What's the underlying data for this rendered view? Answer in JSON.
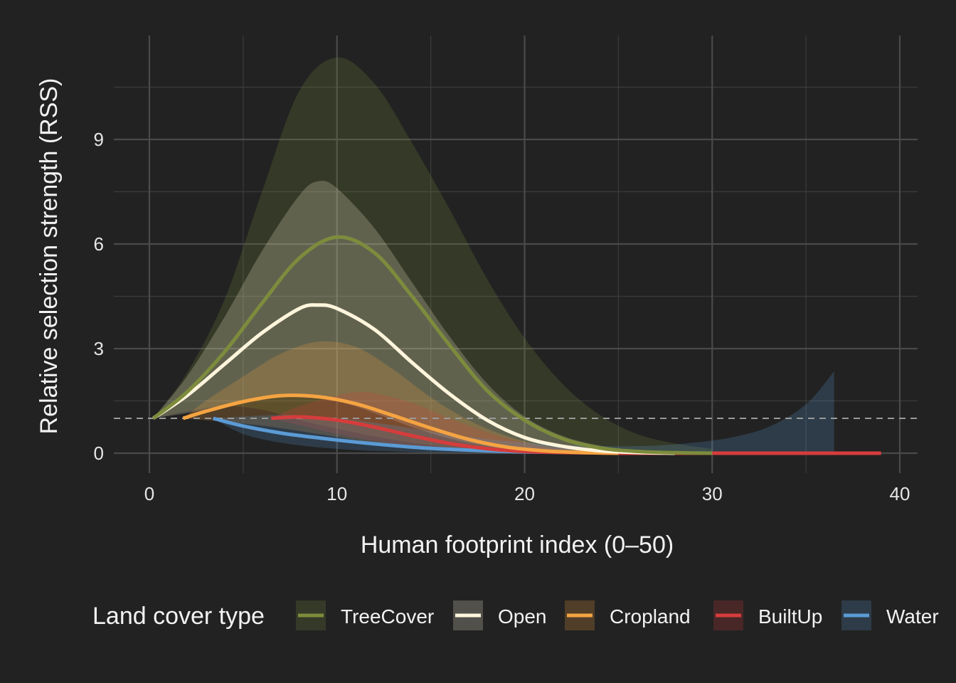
{
  "chart_data": {
    "type": "line",
    "xlabel": "Human footprint index (0–50)",
    "ylabel": "Relative selection strength (RSS)",
    "xlim": [
      -2,
      41
    ],
    "ylim": [
      -0.55,
      11.8
    ],
    "x_ticks": [
      0,
      10,
      20,
      30,
      40
    ],
    "y_ticks": [
      0,
      3,
      6,
      9
    ],
    "grid": true,
    "reference_line": {
      "y": 1,
      "style": "dashed"
    },
    "legend": {
      "title": "Land cover type",
      "position": "bottom"
    },
    "series": [
      {
        "name": "TreeCover",
        "color": "#7d8c3c",
        "points": [
          [
            0.2,
            1.0
          ],
          [
            2,
            1.75
          ],
          [
            4,
            2.9
          ],
          [
            6,
            4.3
          ],
          [
            8,
            5.6
          ],
          [
            10,
            6.2
          ],
          [
            12,
            5.75
          ],
          [
            14,
            4.5
          ],
          [
            16,
            3.1
          ],
          [
            18,
            1.8
          ],
          [
            20,
            0.95
          ],
          [
            22,
            0.42
          ],
          [
            24,
            0.15
          ],
          [
            26,
            0.05
          ],
          [
            28,
            0.015
          ],
          [
            30,
            0.0
          ]
        ],
        "lower": [
          [
            0.2,
            1.0
          ],
          [
            2,
            1.2
          ],
          [
            4,
            1.35
          ],
          [
            6,
            1.25
          ],
          [
            8,
            0.95
          ],
          [
            10,
            0.7
          ],
          [
            12,
            0.48
          ],
          [
            14,
            0.3
          ],
          [
            16,
            0.17
          ],
          [
            18,
            0.09
          ],
          [
            20,
            0.04
          ],
          [
            24,
            0.01
          ],
          [
            30,
            0.0
          ]
        ],
        "upper": [
          [
            0.2,
            1.0
          ],
          [
            2,
            2.3
          ],
          [
            4,
            4.4
          ],
          [
            6,
            7.5
          ],
          [
            8,
            10.4
          ],
          [
            10,
            11.35
          ],
          [
            12,
            10.6
          ],
          [
            14,
            8.9
          ],
          [
            16,
            7.0
          ],
          [
            18,
            5.0
          ],
          [
            20,
            3.3
          ],
          [
            22,
            2.0
          ],
          [
            24,
            1.1
          ],
          [
            26,
            0.55
          ],
          [
            28,
            0.28
          ],
          [
            30,
            0.12
          ]
        ]
      },
      {
        "name": "Open",
        "color": "#fff5dc",
        "points": [
          [
            0.2,
            1.0
          ],
          [
            2,
            1.65
          ],
          [
            4,
            2.55
          ],
          [
            6,
            3.45
          ],
          [
            8,
            4.15
          ],
          [
            9,
            4.25
          ],
          [
            10,
            4.15
          ],
          [
            12,
            3.55
          ],
          [
            14,
            2.6
          ],
          [
            16,
            1.7
          ],
          [
            18,
            0.95
          ],
          [
            20,
            0.45
          ],
          [
            22,
            0.2
          ],
          [
            24,
            0.07
          ],
          [
            26,
            0.02
          ],
          [
            28,
            0.0
          ]
        ],
        "lower": [
          [
            0.2,
            1.0
          ],
          [
            2,
            1.15
          ],
          [
            4,
            1.35
          ],
          [
            6,
            1.55
          ],
          [
            8,
            1.65
          ],
          [
            10,
            1.5
          ],
          [
            12,
            1.15
          ],
          [
            14,
            0.75
          ],
          [
            16,
            0.42
          ],
          [
            18,
            0.2
          ],
          [
            20,
            0.08
          ],
          [
            24,
            0.01
          ],
          [
            28,
            0.0
          ]
        ],
        "upper": [
          [
            0.2,
            1.0
          ],
          [
            2,
            2.2
          ],
          [
            4,
            3.9
          ],
          [
            6,
            5.8
          ],
          [
            8,
            7.4
          ],
          [
            9,
            7.8
          ],
          [
            10,
            7.6
          ],
          [
            12,
            6.45
          ],
          [
            14,
            4.9
          ],
          [
            16,
            3.35
          ],
          [
            18,
            2.0
          ],
          [
            20,
            1.05
          ],
          [
            22,
            0.5
          ],
          [
            24,
            0.22
          ],
          [
            26,
            0.08
          ],
          [
            28,
            0.02
          ]
        ]
      },
      {
        "name": "Cropland",
        "color": "#f5a442",
        "points": [
          [
            1.8,
            1.0
          ],
          [
            3,
            1.2
          ],
          [
            5,
            1.48
          ],
          [
            7,
            1.65
          ],
          [
            9,
            1.62
          ],
          [
            11,
            1.42
          ],
          [
            13,
            1.08
          ],
          [
            15,
            0.72
          ],
          [
            17,
            0.4
          ],
          [
            19,
            0.18
          ],
          [
            21,
            0.07
          ],
          [
            23,
            0.02
          ],
          [
            25,
            0.0
          ]
        ],
        "lower": [
          [
            1.8,
            1.0
          ],
          [
            3,
            0.95
          ],
          [
            5,
            0.85
          ],
          [
            7,
            0.72
          ],
          [
            9,
            0.55
          ],
          [
            11,
            0.38
          ],
          [
            13,
            0.23
          ],
          [
            15,
            0.12
          ],
          [
            17,
            0.05
          ],
          [
            20,
            0.01
          ],
          [
            25,
            0.0
          ]
        ],
        "upper": [
          [
            1.8,
            1.0
          ],
          [
            3,
            1.5
          ],
          [
            5,
            2.2
          ],
          [
            7,
            2.85
          ],
          [
            9,
            3.2
          ],
          [
            11,
            3.05
          ],
          [
            13,
            2.4
          ],
          [
            15,
            1.6
          ],
          [
            17,
            0.95
          ],
          [
            19,
            0.5
          ],
          [
            21,
            0.22
          ],
          [
            23,
            0.09
          ],
          [
            25,
            0.03
          ]
        ]
      },
      {
        "name": "BuiltUp",
        "color": "#d63c3c",
        "points": [
          [
            6.5,
            1.0
          ],
          [
            8,
            1.04
          ],
          [
            10,
            0.95
          ],
          [
            12,
            0.75
          ],
          [
            14,
            0.5
          ],
          [
            16,
            0.28
          ],
          [
            18,
            0.13
          ],
          [
            20,
            0.05
          ],
          [
            22,
            0.02
          ],
          [
            25,
            0.0
          ],
          [
            30,
            0.0
          ],
          [
            35,
            0.0
          ],
          [
            39,
            0.0
          ]
        ],
        "lower": [
          [
            6.5,
            1.0
          ],
          [
            8,
            0.8
          ],
          [
            10,
            0.55
          ],
          [
            12,
            0.35
          ],
          [
            14,
            0.2
          ],
          [
            16,
            0.1
          ],
          [
            18,
            0.04
          ],
          [
            21,
            0.01
          ],
          [
            25,
            0.0
          ],
          [
            39,
            0.0
          ]
        ],
        "upper": [
          [
            6.5,
            1.0
          ],
          [
            8,
            1.35
          ],
          [
            10,
            1.65
          ],
          [
            11,
            1.75
          ],
          [
            12,
            1.72
          ],
          [
            14,
            1.45
          ],
          [
            16,
            1.0
          ],
          [
            18,
            0.6
          ],
          [
            20,
            0.3
          ],
          [
            22,
            0.13
          ],
          [
            25,
            0.04
          ],
          [
            30,
            0.01
          ],
          [
            39,
            0.0
          ]
        ]
      },
      {
        "name": "Water",
        "color": "#5b9bd5",
        "points": [
          [
            3.4,
            1.0
          ],
          [
            5,
            0.78
          ],
          [
            7,
            0.58
          ],
          [
            9,
            0.44
          ],
          [
            11,
            0.32
          ],
          [
            13,
            0.22
          ],
          [
            15,
            0.14
          ],
          [
            17,
            0.09
          ],
          [
            19,
            0.05
          ],
          [
            21,
            0.03
          ],
          [
            24,
            0.01
          ],
          [
            28,
            0.0
          ],
          [
            36.5,
            0.0
          ]
        ],
        "lower": [
          [
            3.4,
            1.0
          ],
          [
            5,
            0.55
          ],
          [
            7,
            0.3
          ],
          [
            9,
            0.17
          ],
          [
            11,
            0.09
          ],
          [
            13,
            0.05
          ],
          [
            15,
            0.02
          ],
          [
            18,
            0.01
          ],
          [
            22,
            0.0
          ],
          [
            36.5,
            0.0
          ]
        ],
        "upper": [
          [
            3.4,
            1.0
          ],
          [
            5,
            1.05
          ],
          [
            7,
            1.1
          ],
          [
            9,
            1.06
          ],
          [
            11,
            0.95
          ],
          [
            13,
            0.8
          ],
          [
            15,
            0.62
          ],
          [
            17,
            0.47
          ],
          [
            19,
            0.35
          ],
          [
            21,
            0.27
          ],
          [
            23,
            0.22
          ],
          [
            25,
            0.2
          ],
          [
            27,
            0.22
          ],
          [
            29,
            0.3
          ],
          [
            31,
            0.45
          ],
          [
            33,
            0.75
          ],
          [
            35,
            1.4
          ],
          [
            36.5,
            2.35
          ]
        ]
      }
    ]
  }
}
